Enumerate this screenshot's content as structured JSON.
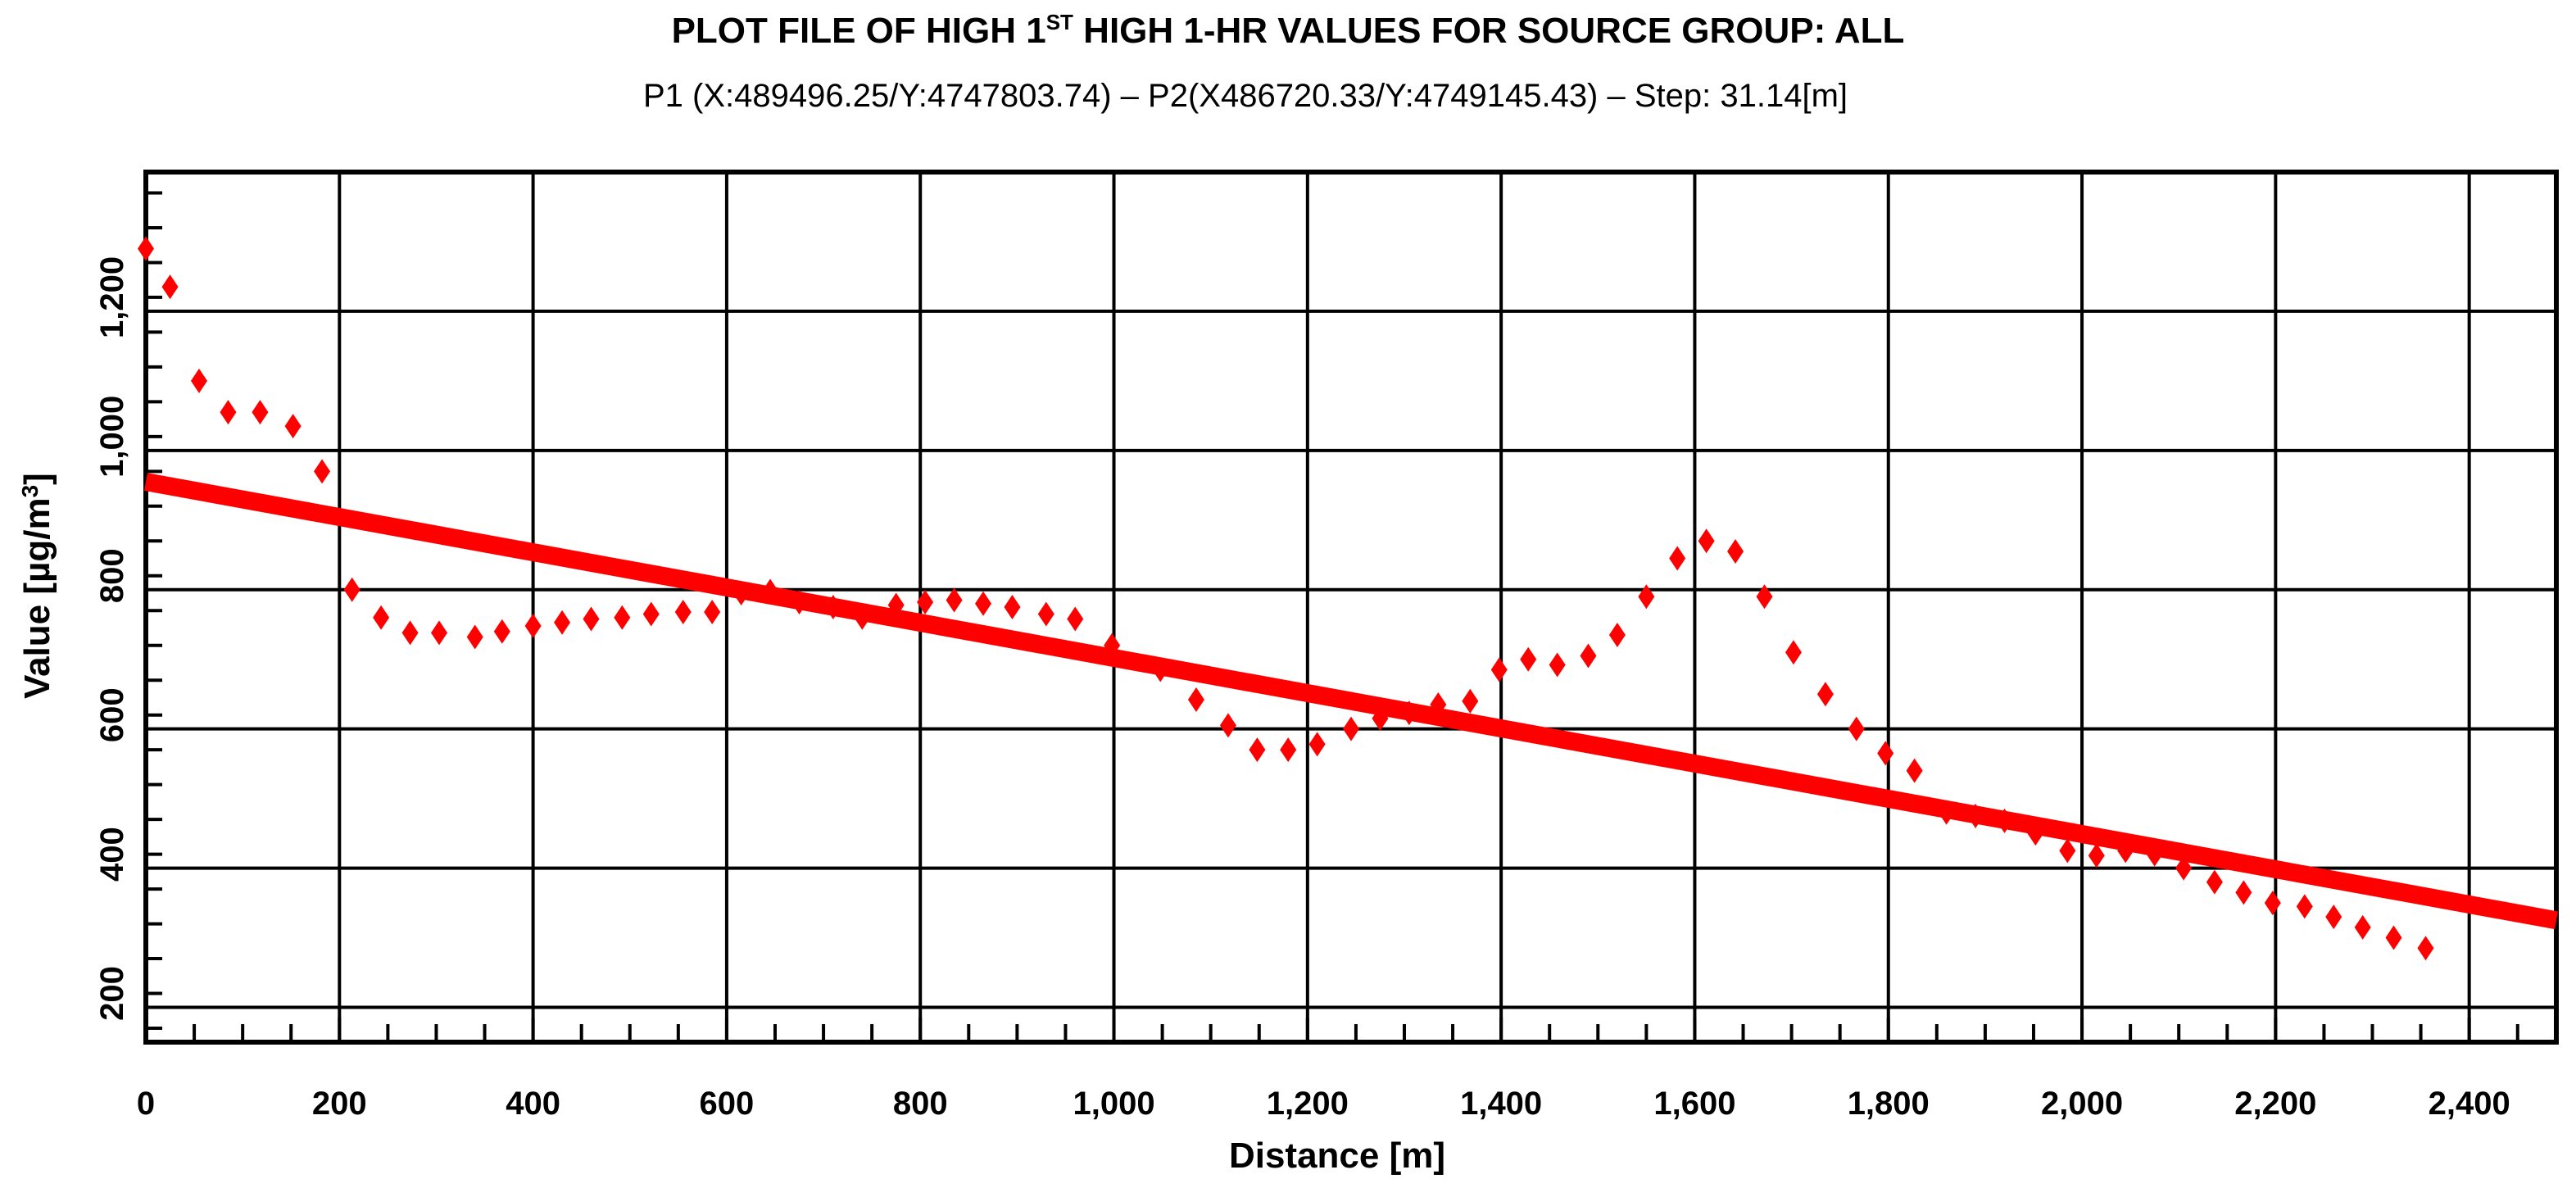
{
  "chart_data": {
    "type": "scatter",
    "title": {
      "part1": "PLOT FILE OF HIGH 1",
      "superscript": "ST",
      "part2": " HIGH 1-HR VALUES FOR SOURCE GROUP: ALL"
    },
    "subtitle": "P1 (X:489496.25/Y:4747803.74) – P2(X486720.33/Y:4749145.43) – Step: 31.14[m]",
    "xlabel": "Distance [m]",
    "ylabel": {
      "text": "Value [µg/m",
      "superscript": "3",
      "close": "]"
    },
    "xlim": [
      0,
      2490
    ],
    "ylim": [
      130,
      1380
    ],
    "xticks": [
      0,
      200,
      400,
      600,
      800,
      1000,
      1200,
      1400,
      1600,
      1800,
      2000,
      2200,
      2400
    ],
    "xtick_labels": [
      "0",
      "200",
      "400",
      "600",
      "800",
      "1,000",
      "1,200",
      "1,400",
      "1,600",
      "1,800",
      "2,000",
      "2,200",
      "2,400"
    ],
    "xminor_step": 50,
    "yticks": [
      200,
      400,
      600,
      800,
      1000,
      1200
    ],
    "ytick_labels": [
      "200",
      "400",
      "600",
      "800",
      "1,000",
      "1,200"
    ],
    "ygrid": [
      180,
      380,
      580,
      780,
      980,
      1180,
      1380
    ],
    "yminor_step": 50,
    "grid": true,
    "marker_color": "#ff0000",
    "trend_color": "#ff0000",
    "points": [
      [
        0,
        1270
      ],
      [
        25,
        1215
      ],
      [
        55,
        1080
      ],
      [
        85,
        1035
      ],
      [
        118,
        1035
      ],
      [
        152,
        1015
      ],
      [
        182,
        950
      ],
      [
        213,
        780
      ],
      [
        243,
        740
      ],
      [
        273,
        718
      ],
      [
        303,
        718
      ],
      [
        340,
        712
      ],
      [
        368,
        720
      ],
      [
        400,
        728
      ],
      [
        430,
        733
      ],
      [
        460,
        738
      ],
      [
        492,
        740
      ],
      [
        522,
        745
      ],
      [
        555,
        748
      ],
      [
        585,
        748
      ],
      [
        615,
        775
      ],
      [
        645,
        778
      ],
      [
        675,
        762
      ],
      [
        710,
        755
      ],
      [
        740,
        740
      ],
      [
        775,
        758
      ],
      [
        805,
        762
      ],
      [
        835,
        765
      ],
      [
        865,
        760
      ],
      [
        895,
        755
      ],
      [
        930,
        745
      ],
      [
        960,
        738
      ],
      [
        998,
        700
      ],
      [
        1048,
        665
      ],
      [
        1085,
        622
      ],
      [
        1118,
        585
      ],
      [
        1148,
        550
      ],
      [
        1180,
        550
      ],
      [
        1210,
        558
      ],
      [
        1245,
        580
      ],
      [
        1275,
        595
      ],
      [
        1305,
        603
      ],
      [
        1335,
        615
      ],
      [
        1368,
        620
      ],
      [
        1398,
        665
      ],
      [
        1428,
        680
      ],
      [
        1458,
        672
      ],
      [
        1490,
        685
      ],
      [
        1520,
        715
      ],
      [
        1550,
        770
      ],
      [
        1582,
        825
      ],
      [
        1612,
        850
      ],
      [
        1642,
        835
      ],
      [
        1672,
        770
      ],
      [
        1702,
        690
      ],
      [
        1735,
        630
      ],
      [
        1767,
        580
      ],
      [
        1797,
        545
      ],
      [
        1827,
        520
      ],
      [
        1860,
        460
      ],
      [
        1890,
        455
      ],
      [
        1920,
        448
      ],
      [
        1952,
        430
      ],
      [
        1985,
        405
      ],
      [
        2015,
        398
      ],
      [
        2045,
        405
      ],
      [
        2075,
        400
      ],
      [
        2105,
        380
      ],
      [
        2137,
        360
      ],
      [
        2167,
        345
      ],
      [
        2197,
        330
      ],
      [
        2230,
        325
      ],
      [
        2260,
        310
      ],
      [
        2290,
        295
      ],
      [
        2322,
        280
      ],
      [
        2355,
        265
      ]
    ],
    "trend": {
      "x": [
        0,
        2490
      ],
      "y": [
        935,
        305
      ]
    }
  }
}
